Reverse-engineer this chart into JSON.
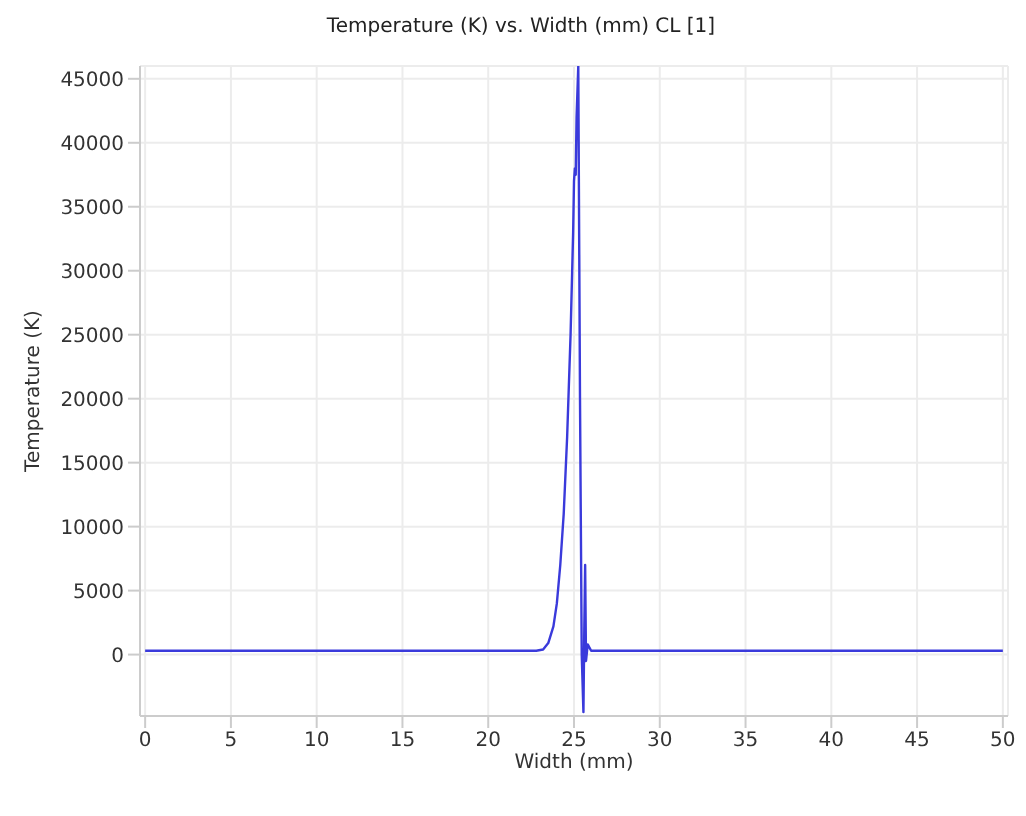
{
  "chart_data": {
    "type": "line",
    "title": "Temperature (K) vs. Width (mm) CL [1]",
    "xlabel": "Width (mm)",
    "ylabel": "Temperature (K)",
    "x": [
      0,
      22.8,
      23.2,
      23.5,
      23.8,
      24.0,
      24.2,
      24.4,
      24.6,
      24.8,
      24.95,
      25.0,
      25.05,
      25.1,
      25.15,
      25.25,
      25.35,
      25.45,
      25.55,
      25.6,
      25.65,
      25.7,
      25.8,
      26.0,
      50
    ],
    "series": [
      {
        "color": "#3a3adb",
        "values": [
          300,
          300,
          400,
          900,
          2200,
          4000,
          7000,
          11000,
          17000,
          25000,
          33000,
          37000,
          38000,
          37500,
          42000,
          46000,
          20000,
          0,
          -4500,
          2000,
          7000,
          -500,
          800,
          300,
          300
        ]
      }
    ],
    "xlim": [
      -0.3,
      50.3
    ],
    "xticks": [
      0,
      5,
      10,
      15,
      20,
      25,
      30,
      35,
      40,
      45,
      50
    ],
    "ylim": [
      -4800,
      46000
    ],
    "yticks": [
      0,
      5000,
      10000,
      15000,
      20000,
      25000,
      30000,
      35000,
      40000,
      45000
    ],
    "grid": true,
    "legend": false,
    "marker": "none",
    "line_style": "solid"
  }
}
